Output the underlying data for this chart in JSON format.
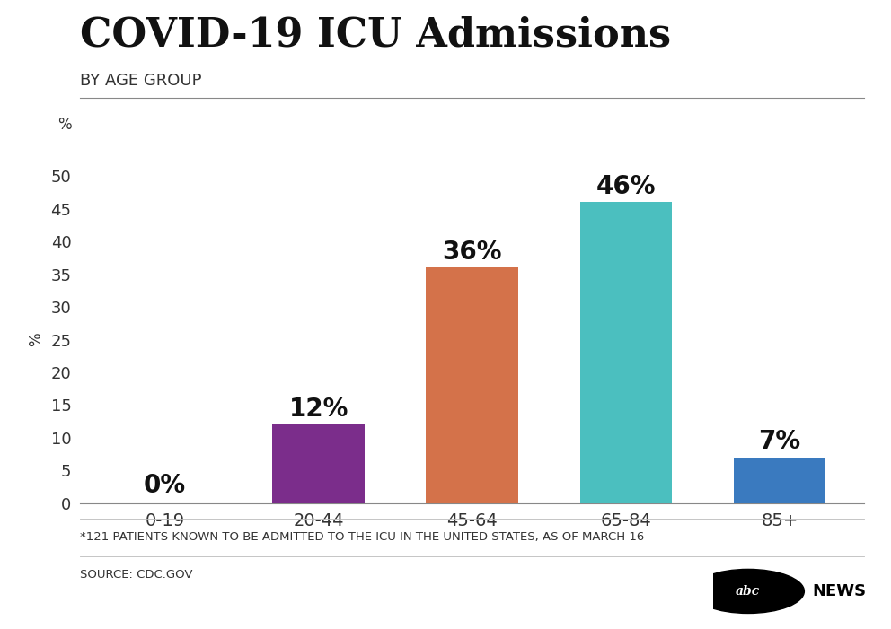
{
  "title": "COVID-19 ICU Admissions",
  "subtitle": "BY AGE GROUP",
  "categories": [
    "0-19",
    "20-44",
    "45-64",
    "65-84",
    "85+"
  ],
  "values": [
    0,
    12,
    36,
    46,
    7
  ],
  "labels": [
    "0%",
    "12%",
    "36%",
    "46%",
    "7%"
  ],
  "bar_colors": [
    "#d0d0d0",
    "#7b2d8b",
    "#d4724a",
    "#4bbfbf",
    "#3a7abf"
  ],
  "ylabel": "%",
  "ylim": [
    0,
    50
  ],
  "yticks": [
    0,
    5,
    10,
    15,
    20,
    25,
    30,
    35,
    40,
    45,
    50
  ],
  "background_color": "#ffffff",
  "title_fontsize": 32,
  "subtitle_fontsize": 13,
  "ylabel_fontsize": 12,
  "tick_fontsize": 13,
  "label_fontsize": 20,
  "footnote": "*121 PATIENTS KNOWN TO BE ADMITTED TO THE ICU IN THE UNITED STATES, AS OF MARCH 16",
  "source": "SOURCE: CDC.GOV",
  "footnote_fontsize": 9.5,
  "source_fontsize": 9.5,
  "title_color": "#111111",
  "subtitle_color": "#333333",
  "tick_color": "#333333",
  "label_color": "#111111",
  "footnote_color": "#333333",
  "bar_width": 0.6
}
